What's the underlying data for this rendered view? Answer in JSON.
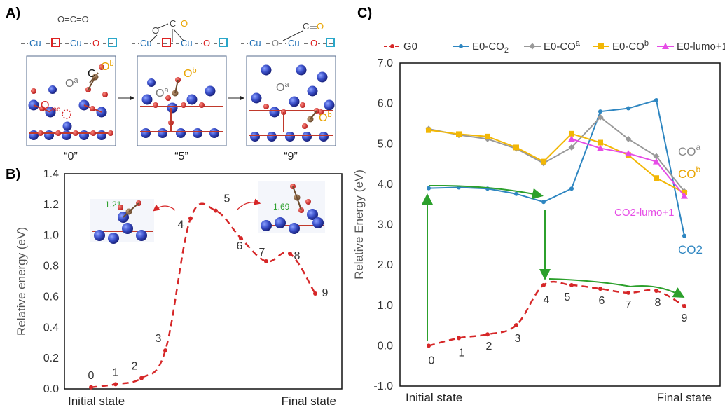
{
  "panels": {
    "a": {
      "label": "A)",
      "top_molecule": "O=C=O",
      "chains": [
        [
          {
            "t": "Cu",
            "c": "#1f6fb5"
          },
          {
            "t": "□",
            "c": "#d22"
          },
          {
            "t": "Cu",
            "c": "#1f6fb5"
          },
          {
            "t": "O",
            "c": "#d22"
          },
          {
            "t": "□",
            "c": "#2aa7c9"
          }
        ],
        [
          {
            "t": "Cu",
            "c": "#1f6fb5"
          },
          {
            "t": "□",
            "c": "#d22"
          },
          {
            "t": "Cu",
            "c": "#1f6fb5"
          },
          {
            "t": "O",
            "c": "#d22"
          },
          {
            "t": "□",
            "c": "#2aa7c9"
          }
        ],
        [
          {
            "t": "Cu",
            "c": "#1f6fb5"
          },
          {
            "t": "O",
            "c": "#888"
          },
          {
            "t": "Cu",
            "c": "#1f6fb5"
          },
          {
            "t": "O",
            "c": "#d22"
          },
          {
            "t": "□",
            "c": "#2aa7c9"
          }
        ]
      ],
      "adsorbates": {
        "o_c": "O",
        "c_1": "C",
        "o_1": "O",
        "c_2": "C",
        "o_2": "O"
      },
      "captions": [
        "“0”",
        "“5”",
        "“9”"
      ],
      "structure_labels": {
        "oa": "O",
        "oa_sup": "a",
        "ob": "O",
        "ob_sup": "b",
        "c": "C",
        "ovac": "O",
        "ovac_sub": "vac"
      }
    },
    "b": {
      "label": "B)",
      "inset_1": "1.21",
      "inset_2": "1.69"
    },
    "c": {
      "label": "C)",
      "series_annotations": [
        {
          "text": "CO",
          "sup": "a",
          "color": "#888888"
        },
        {
          "text": "CO",
          "sup": "b",
          "color": "#e9a400"
        },
        {
          "text": "CO2-lumo+1",
          "sup": "",
          "color": "#e64ce6"
        },
        {
          "text": "CO2",
          "sup": "",
          "color": "#2e86c1"
        }
      ]
    }
  },
  "chart_data": [
    {
      "type": "line",
      "panel": "B",
      "ylabel": "Relative energy (eV)",
      "xlabel_left": "Initial state",
      "xlabel_right": "Final state",
      "ylim": [
        0.0,
        1.4
      ],
      "yticks": [
        "0.0",
        "0.2",
        "0.4",
        "0.6",
        "0.8",
        "1.0",
        "1.2",
        "1.4"
      ],
      "x": [
        0,
        1,
        2,
        3,
        4,
        5,
        6,
        7,
        8,
        9
      ],
      "point_labels": [
        "0",
        "1",
        "2",
        "3",
        "4",
        "5",
        "6",
        "7",
        "8",
        "9"
      ],
      "values": [
        0.01,
        0.03,
        0.07,
        0.25,
        1.11,
        1.16,
        0.98,
        0.83,
        0.88,
        0.62
      ],
      "color": "#d62728"
    },
    {
      "type": "line",
      "panel": "C",
      "ylabel": "Relative Energy (eV)",
      "xlabel_left": "Initial state",
      "xlabel_right": "Final state",
      "ylim": [
        -1.0,
        7.0
      ],
      "yticks": [
        "-1.0",
        "0.0",
        "1.0",
        "2.0",
        "3.0",
        "4.0",
        "5.0",
        "6.0",
        "7.0"
      ],
      "x": [
        0,
        1,
        2,
        3,
        4,
        5,
        6,
        7,
        8,
        9
      ],
      "point_labels": [
        "0",
        "1",
        "2",
        "3",
        "4",
        "5",
        "6",
        "7",
        "8",
        "9"
      ],
      "legend": [
        {
          "text": "G0",
          "sub": "",
          "sup": ""
        },
        {
          "text": "E0-CO",
          "sub": "2",
          "sup": ""
        },
        {
          "text": "E0-CO",
          "sub": "",
          "sup": "a"
        },
        {
          "text": "E0-CO",
          "sub": "",
          "sup": "b"
        },
        {
          "text": "E0-lumo+1",
          "sub": "",
          "sup": ""
        }
      ],
      "series": [
        {
          "key": "g0",
          "color": "#d62728",
          "marker": "circle",
          "dashed": true,
          "values": [
            0.0,
            0.19,
            0.28,
            0.51,
            1.5,
            1.5,
            1.41,
            1.31,
            1.36,
            0.98
          ]
        },
        {
          "key": "co2",
          "color": "#2e86c1",
          "marker": "circle",
          "dashed": false,
          "values": [
            3.9,
            3.92,
            3.89,
            3.76,
            3.56,
            3.89,
            5.8,
            5.88,
            6.08,
            2.72
          ]
        },
        {
          "key": "coa",
          "color": "#999999",
          "marker": "diamond",
          "dashed": false,
          "values": [
            5.37,
            5.22,
            5.12,
            4.88,
            4.52,
            4.91,
            5.66,
            5.12,
            4.69,
            3.82
          ]
        },
        {
          "key": "cob",
          "color": "#f2b705",
          "marker": "square",
          "dashed": false,
          "values": [
            5.34,
            5.24,
            5.18,
            4.91,
            4.56,
            5.25,
            5.03,
            4.72,
            4.15,
            3.79
          ]
        },
        {
          "key": "lumo",
          "color": "#e64ce6",
          "marker": "triangle",
          "dashed": false,
          "values": [
            null,
            null,
            null,
            null,
            null,
            5.12,
            4.89,
            4.76,
            4.56,
            3.71
          ]
        }
      ]
    }
  ]
}
